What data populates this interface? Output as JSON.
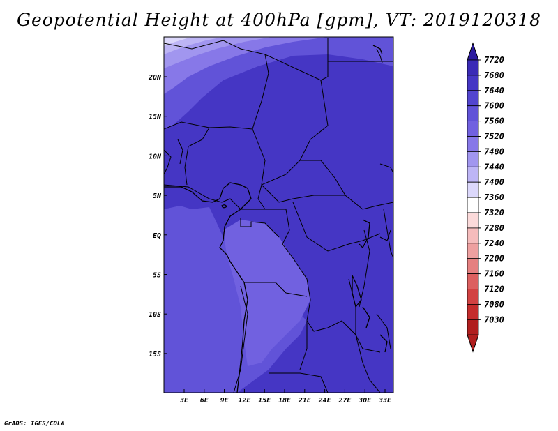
{
  "title": "Geopotential Height at 400hPa [gpm], VT: 2019120318",
  "credit": "GrADS: IGES/COLA",
  "map": {
    "lon_ticks": [
      "3E",
      "6E",
      "9E",
      "12E",
      "15E",
      "18E",
      "21E",
      "24E",
      "27E",
      "30E",
      "33E"
    ],
    "lat_ticks": [
      "20N",
      "15N",
      "10N",
      "5N",
      "EQ",
      "5S",
      "10S",
      "15S"
    ]
  },
  "colorbar": {
    "levels": [
      "7720",
      "7680",
      "7640",
      "7600",
      "7560",
      "7520",
      "7480",
      "7440",
      "7400",
      "7360",
      "7320",
      "7280",
      "7240",
      "7200",
      "7160",
      "7120",
      "7080",
      "7030"
    ],
    "colors": [
      "#2c1ba0",
      "#3a2ab6",
      "#4536c4",
      "#5245cf",
      "#6153d8",
      "#7161e0",
      "#8778e8",
      "#a196ef",
      "#bdb5f5",
      "#dcd8fb",
      "#ffffff",
      "#fbdada",
      "#f5bcbc",
      "#eea0a0",
      "#e58080",
      "#dc6060",
      "#d24242",
      "#c42c2c",
      "#b01e1e"
    ],
    "top_color": "#2c1ba0",
    "bottom_color": "#b01e1e"
  },
  "field_colors": {
    "base": "#4536c4",
    "lighter": "#6153d8",
    "lightest": "#7161e0",
    "north1": "#8778e8",
    "north2": "#a196ef",
    "north3": "#bdb5f5",
    "north4": "#dcd8fb"
  }
}
